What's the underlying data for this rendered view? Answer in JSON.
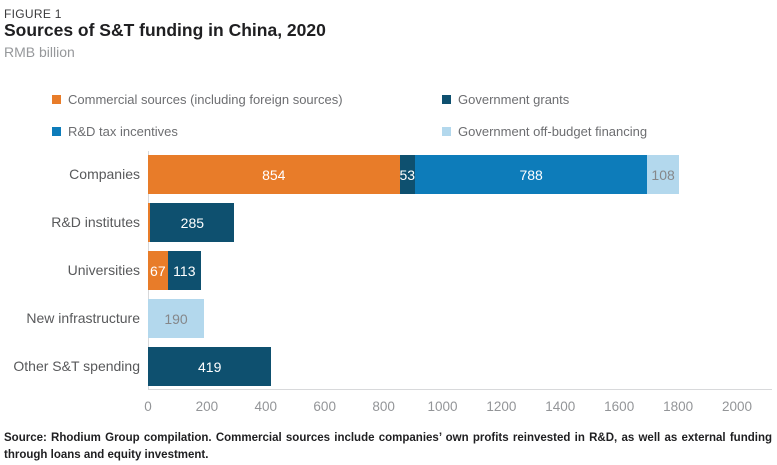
{
  "figure_label": "FIGURE 1",
  "title": "Sources of S&T funding in China, 2020",
  "unit": "RMB billion",
  "source_note": "Source: Rhodium Group compilation. Commercial sources include companies’ own profits reinvested in R&D, as well as external funding through loans and equity investment.",
  "chart_data": {
    "type": "bar",
    "orientation": "horizontal",
    "title": "Sources of S&T funding in China, 2020",
    "xlabel": "",
    "ylabel": "RMB billion",
    "xlim": [
      0,
      2000
    ],
    "x_ticks": [
      0,
      200,
      400,
      600,
      800,
      1000,
      1200,
      1400,
      1600,
      1800,
      2000
    ],
    "grid": false,
    "legend_position": "top, two columns",
    "categories": [
      "Companies",
      "R&D institutes",
      "Universities",
      "New infrastructure",
      "Other S&T spending"
    ],
    "series": [
      {
        "name": "Commercial sources (including foreign sources)",
        "color": "#e87c29",
        "label_color": "#ffffff",
        "values": [
          854,
          8,
          67,
          0,
          0
        ],
        "labels": [
          "854",
          "",
          "67",
          "",
          ""
        ]
      },
      {
        "name": "Government grants",
        "color": "#0e506f",
        "label_color": "#ffffff",
        "values": [
          53,
          285,
          113,
          0,
          419
        ],
        "labels": [
          "53",
          "285",
          "113",
          "",
          "419"
        ]
      },
      {
        "name": "R&D tax incentives",
        "color": "#0d7cba",
        "label_color": "#ffffff",
        "values": [
          788,
          0,
          0,
          0,
          0
        ],
        "labels": [
          "788",
          "",
          "",
          "",
          ""
        ]
      },
      {
        "name": "Government off-budget financing",
        "color": "#b3d8ed",
        "label_color": "#85878a",
        "values": [
          108,
          0,
          0,
          190,
          0
        ],
        "labels": [
          "108",
          "",
          "",
          "190",
          ""
        ]
      }
    ]
  }
}
